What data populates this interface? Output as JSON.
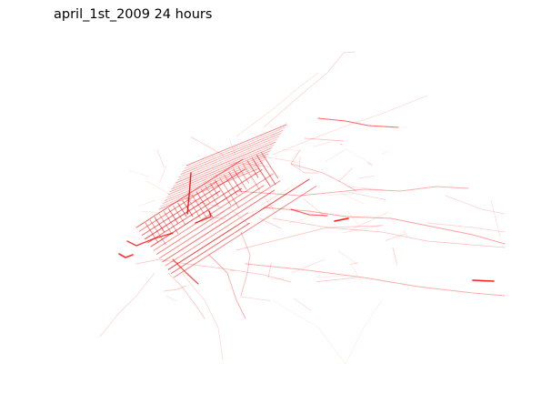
{
  "title": "april_1st_2009 24 hours",
  "trace_color": "#ff0000"
}
